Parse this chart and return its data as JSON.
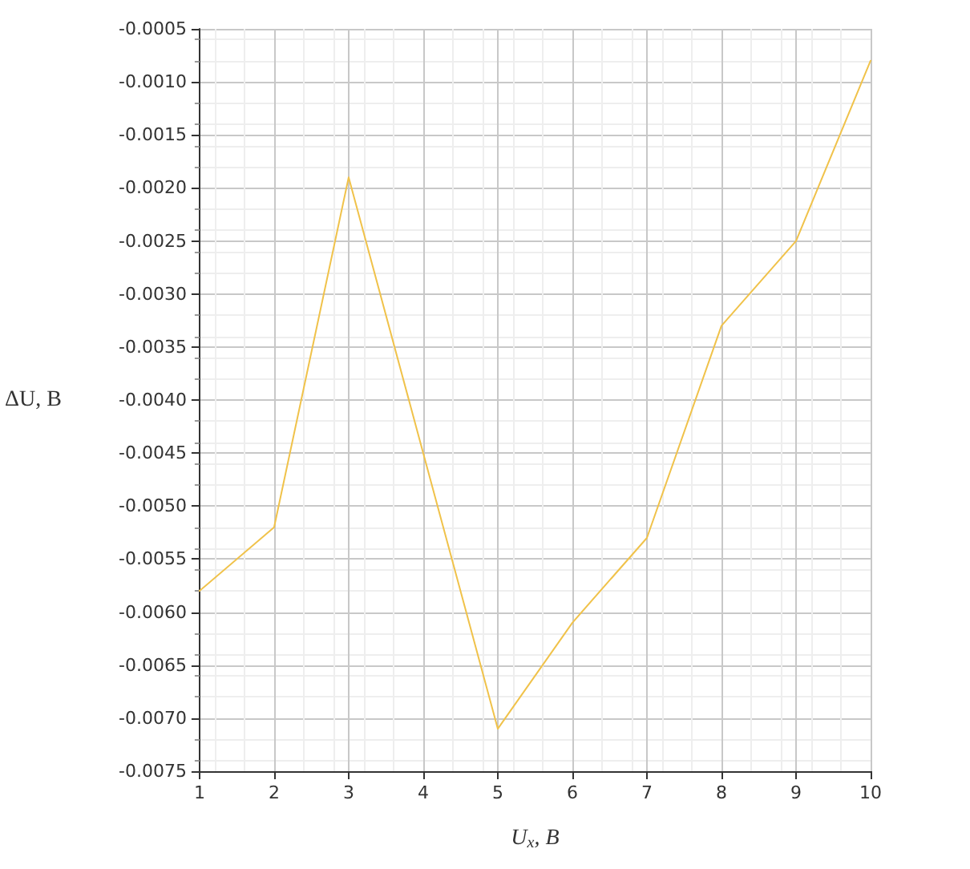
{
  "chart_data": {
    "type": "line",
    "xlabel": "U$_{x}$, B",
    "ylabel": "ΔU, B",
    "x": [
      1,
      2,
      3,
      4,
      5,
      6,
      7,
      8,
      9,
      10
    ],
    "series": [
      {
        "color": "#f0c24a",
        "values": [
          -0.0058,
          -0.0052,
          -0.0019,
          -0.0045,
          -0.0071,
          -0.0061,
          -0.0053,
          -0.0033,
          -0.0025,
          -0.0008
        ]
      }
    ],
    "xlim": [
      1,
      10
    ],
    "xticks": [
      1,
      2,
      3,
      4,
      5,
      6,
      7,
      8,
      9,
      10
    ],
    "ylim": [
      -0.0075,
      -0.0005
    ],
    "yticks": [
      {
        "value": -0.0075,
        "label": "-0.0075"
      },
      {
        "value": -0.007,
        "label": "-0.0070"
      },
      {
        "value": -0.0065,
        "label": "-0.0065"
      },
      {
        "value": -0.006,
        "label": "-0.0060"
      },
      {
        "value": -0.0055,
        "label": "-0.0055"
      },
      {
        "value": -0.005,
        "label": "-0.0050"
      },
      {
        "value": -0.0045,
        "label": "-0.0045"
      },
      {
        "value": -0.004,
        "label": "-0.0040"
      },
      {
        "value": -0.0035,
        "label": "-0.0035"
      },
      {
        "value": -0.003,
        "label": "-0.0030"
      },
      {
        "value": -0.0025,
        "label": "-0.0025"
      },
      {
        "value": -0.002,
        "label": "-0.0020"
      },
      {
        "value": -0.0015,
        "label": "-0.0015"
      },
      {
        "value": -0.001,
        "label": "-0.0010"
      },
      {
        "value": -0.0005,
        "label": "-0.0005"
      }
    ],
    "grid": true,
    "marker": "none",
    "line_style": "solid"
  }
}
